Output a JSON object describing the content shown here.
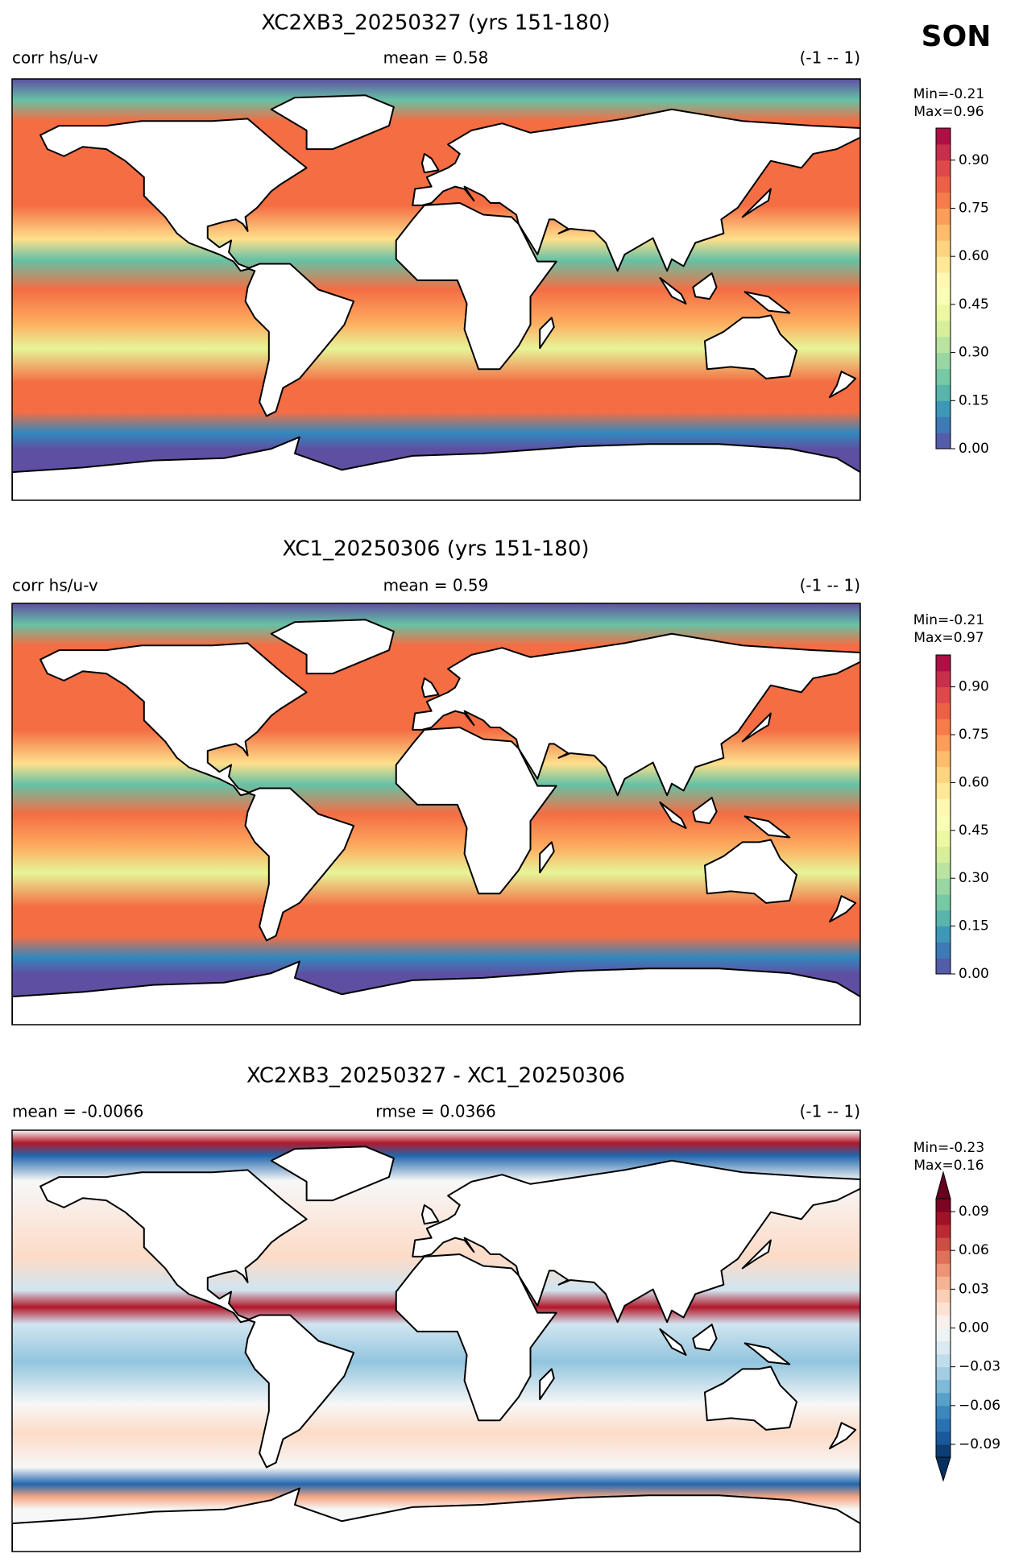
{
  "season": "SON",
  "panels": [
    {
      "title": "XC2XB3_20250327 (yrs 151-180)",
      "left": "corr hs/u-v",
      "center": "mean = 0.58",
      "right": "(-1 -- 1)",
      "stats": [
        "Min=-0.21",
        "Max=0.96"
      ],
      "colorbar": {
        "lim": [
          0,
          1
        ],
        "ticks": [
          {
            "value": 0,
            "label": "0.00"
          },
          0.15,
          {
            "value": 0.3,
            "label": "0.30"
          },
          0.45,
          {
            "value": 0.6,
            "label": "0.60"
          },
          0.75,
          {
            "value": 0.9,
            "label": "0.90"
          }
        ],
        "cmap": [
          "#5e4fa2",
          "#3288bd",
          "#66c2a5",
          "#abdda4",
          "#e6f598",
          "#ffffbf",
          "#fee08b",
          "#fdae61",
          "#f46d43",
          "#d53e4f",
          "#9e0142"
        ]
      }
    },
    {
      "title": "XC1_20250306 (yrs 151-180)",
      "left": "corr hs/u-v",
      "center": "mean = 0.59",
      "right": "(-1 -- 1)",
      "stats": [
        "Min=-0.21",
        "Max=0.97"
      ],
      "colorbar": {
        "lim": [
          0,
          1
        ],
        "ticks": [
          {
            "value": 0,
            "label": "0.00"
          },
          0.15,
          {
            "value": 0.3,
            "label": "0.30"
          },
          0.45,
          {
            "value": 0.6,
            "label": "0.60"
          },
          0.75,
          {
            "value": 0.9,
            "label": "0.90"
          }
        ],
        "cmap": [
          "#5e4fa2",
          "#3288bd",
          "#66c2a5",
          "#abdda4",
          "#e6f598",
          "#ffffbf",
          "#fee08b",
          "#fdae61",
          "#f46d43",
          "#d53e4f",
          "#9e0142"
        ]
      }
    },
    {
      "title": "XC2XB3_20250327 - XC1_20250306",
      "left": "mean = -0.0066",
      "center": "rmse = 0.0366",
      "right": "(-1 -- 1)",
      "stats": [
        "Min=-0.23",
        "Max=0.16"
      ],
      "colorbar": {
        "lim": [
          -0.1,
          0.1
        ],
        "extend": "both",
        "ticks": [
          {
            "value": -0.09,
            "label": "−0.09"
          },
          {
            "value": -0.06,
            "label": "−0.06"
          },
          {
            "value": -0.03,
            "label": "−0.03"
          },
          {
            "value": 0,
            "label": "0.00"
          },
          0.03,
          0.06,
          0.09
        ],
        "cmap": [
          "#053061",
          "#2166ac",
          "#4393c3",
          "#92c5de",
          "#d1e5f0",
          "#f7f7f7",
          "#fddbc7",
          "#f4a582",
          "#d6604d",
          "#b2182b",
          "#67001f"
        ]
      }
    }
  ]
}
